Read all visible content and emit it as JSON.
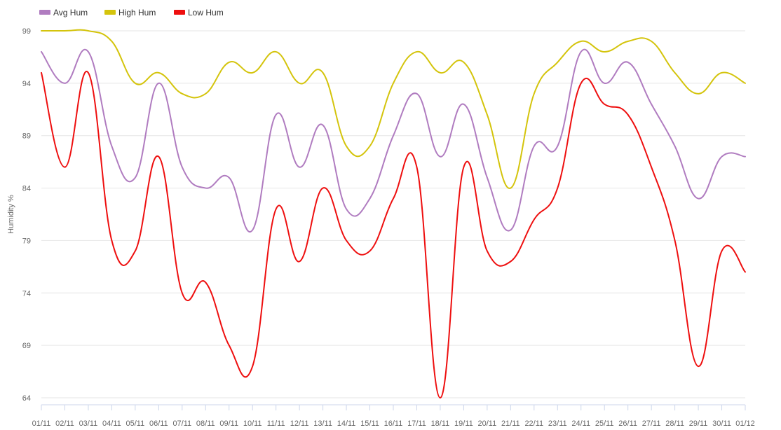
{
  "chart_data": {
    "type": "line",
    "title": "",
    "xlabel": "",
    "ylabel": "Humidity %",
    "ylim": [
      64,
      99
    ],
    "yticks": [
      64,
      69,
      74,
      79,
      84,
      89,
      94,
      99
    ],
    "grid": true,
    "legend_position": "top-left",
    "x": [
      "01/11",
      "02/11",
      "03/11",
      "04/11",
      "05/11",
      "06/11",
      "07/11",
      "08/11",
      "09/11",
      "10/11",
      "11/11",
      "12/11",
      "13/11",
      "14/11",
      "15/11",
      "16/11",
      "17/11",
      "18/11",
      "19/11",
      "20/11",
      "21/11",
      "22/11",
      "23/11",
      "24/11",
      "25/11",
      "26/11",
      "27/11",
      "28/11",
      "29/11",
      "30/11",
      "01/12"
    ],
    "x_tick_labels": [
      "01/11",
      "02/11",
      "03/11",
      "04/11",
      "05/11",
      "06/11",
      "07/11",
      "08/11",
      "09/11",
      "10/11",
      "11/11",
      "12/11",
      "13/11",
      "14/11",
      "15/11",
      "16/11",
      "17/11",
      "18/11",
      "19/11",
      "20/11",
      "21/11",
      "22/11",
      "23/11",
      "24/11",
      "25/11",
      "26/11",
      "27/11",
      "28/11",
      "29/11",
      "30/11",
      "01/12"
    ],
    "series": [
      {
        "name": "Avg Hum",
        "color": "#b07cc0",
        "values": [
          97,
          94,
          97,
          88,
          85,
          94,
          86,
          84,
          85,
          80,
          91,
          86,
          90,
          82,
          83,
          89,
          93,
          87,
          92,
          85,
          80,
          88,
          88,
          97,
          94,
          96,
          92,
          88,
          83,
          87,
          87
        ]
      },
      {
        "name": "High Hum",
        "color": "#d4c40c",
        "values": [
          99,
          99,
          99,
          98,
          94,
          95,
          93,
          93,
          96,
          95,
          97,
          94,
          95,
          88,
          88,
          94,
          97,
          95,
          96,
          91,
          84,
          93,
          96,
          98,
          97,
          98,
          98,
          95,
          93,
          95,
          94
        ]
      },
      {
        "name": "Low Hum",
        "color": "#ee0f0f",
        "values": [
          95,
          86,
          95,
          79,
          78,
          87,
          74,
          75,
          69,
          67,
          82,
          77,
          84,
          79,
          78,
          83,
          86,
          64,
          86,
          78,
          77,
          81,
          84,
          94,
          92,
          91,
          86,
          79,
          67,
          78,
          76
        ]
      }
    ]
  }
}
